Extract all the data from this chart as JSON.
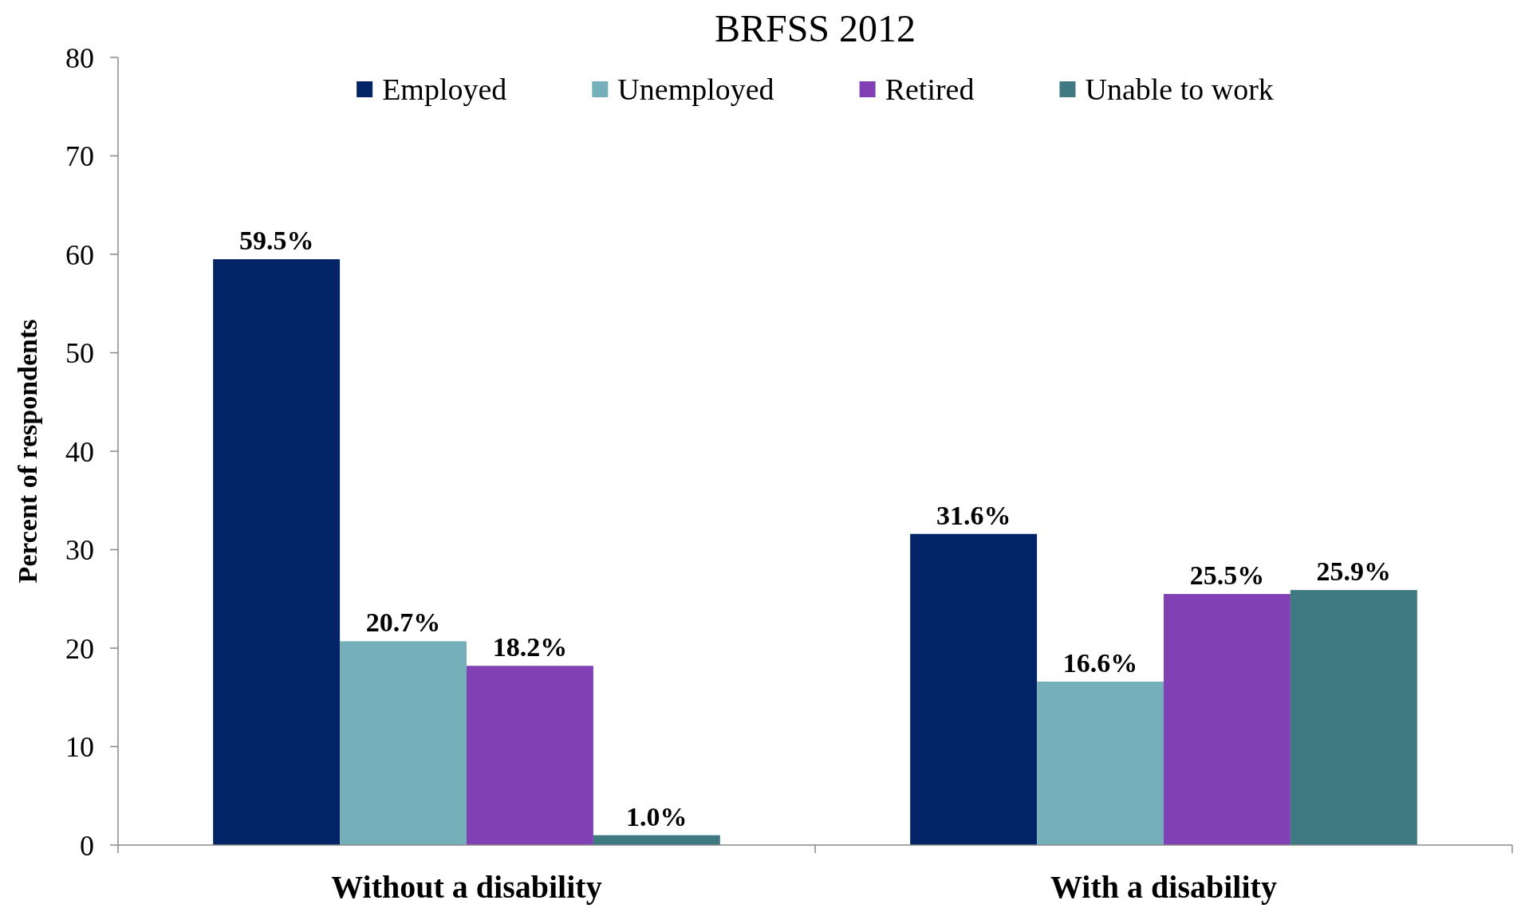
{
  "chart_data": {
    "type": "bar",
    "title": "BRFSS 2012",
    "ylabel": "Percent of respondents",
    "categories": [
      "Without a disability",
      "With a disability"
    ],
    "series": [
      {
        "name": "Employed",
        "color": "#022366",
        "values": [
          59.5,
          31.6
        ],
        "value_labels": [
          "59.5%",
          "31.6%"
        ]
      },
      {
        "name": "Unemployed",
        "color": "#75b0ba",
        "values": [
          20.7,
          16.6
        ],
        "value_labels": [
          "20.7%",
          "16.6%"
        ]
      },
      {
        "name": "Retired",
        "color": "#8140b4",
        "values": [
          18.2,
          25.5
        ],
        "value_labels": [
          "18.2%",
          "25.5%"
        ]
      },
      {
        "name": "Unable to work",
        "color": "#3f7a83",
        "values": [
          1.0,
          25.9
        ],
        "value_labels": [
          "1.0%",
          "25.9%"
        ]
      }
    ],
    "ylim": [
      0,
      80
    ],
    "yticks": [
      0,
      10,
      20,
      30,
      40,
      50,
      60,
      70,
      80
    ],
    "legend": "top"
  }
}
